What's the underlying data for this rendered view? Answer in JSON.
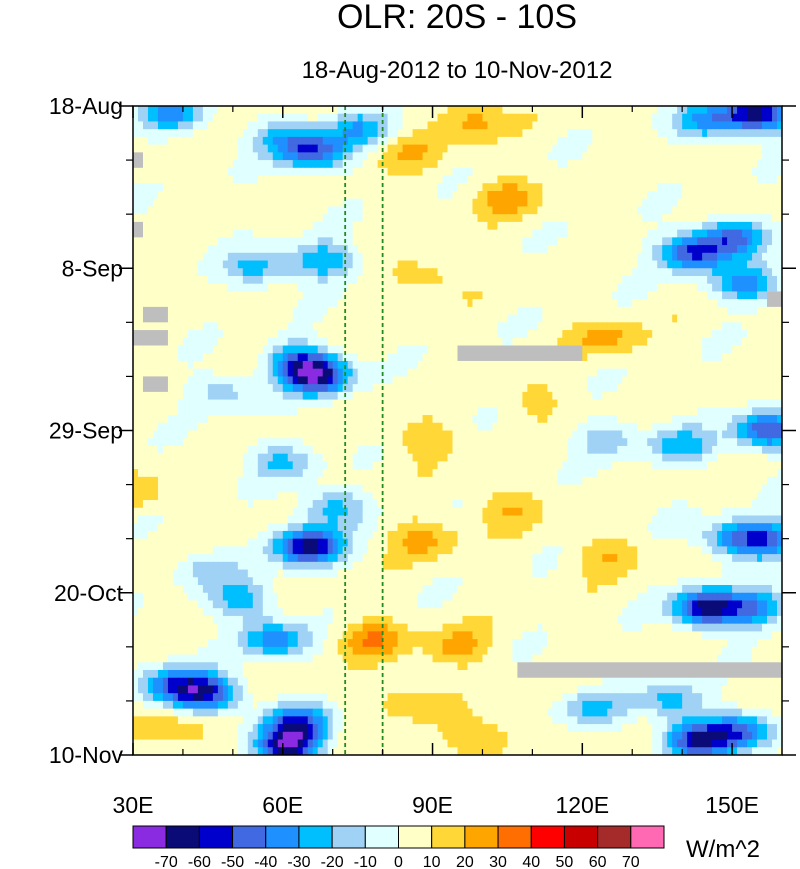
{
  "chart_data": {
    "type": "heatmap",
    "title": "OLR: 20S - 10S",
    "subtitle": "18-Aug-2012 to 10-Nov-2012",
    "xlabel": "",
    "ylabel": "",
    "xlim": [
      30,
      160
    ],
    "ylim_days": [
      0,
      84
    ],
    "x_ticks": [
      {
        "value": 30,
        "label": "30E"
      },
      {
        "value": 60,
        "label": "60E"
      },
      {
        "value": 90,
        "label": "90E"
      },
      {
        "value": 120,
        "label": "120E"
      },
      {
        "value": 150,
        "label": "150E"
      }
    ],
    "y_ticks": [
      {
        "day": 0,
        "label": "18-Aug"
      },
      {
        "day": 21,
        "label": "8-Sep"
      },
      {
        "day": 42,
        "label": "29-Sep"
      },
      {
        "day": 63,
        "label": "20-Oct"
      },
      {
        "day": 84,
        "label": "10-Nov"
      }
    ],
    "reference_lines_lon": [
      72.5,
      80
    ],
    "colorbar": {
      "units": "W/m^2",
      "levels": [
        -70,
        -60,
        -50,
        -40,
        -30,
        -20,
        -10,
        0,
        10,
        20,
        30,
        40,
        50,
        60,
        70
      ],
      "colors": [
        "#8a2be2",
        "#0b0b78",
        "#0000cd",
        "#4169e1",
        "#1e90ff",
        "#00bfff",
        "#a0d2f5",
        "#e0ffff",
        "#ffffc8",
        "#ffd737",
        "#ffa500",
        "#ff6e00",
        "#ff0000",
        "#c80000",
        "#a52a2a",
        "#ff69b4"
      ]
    },
    "anomalies": [
      {
        "lon": 38,
        "day": 1,
        "value": -35
      },
      {
        "lon": 60,
        "day": 4,
        "value": -25
      },
      {
        "lon": 66,
        "day": 6,
        "value": -50
      },
      {
        "lon": 75,
        "day": 3,
        "value": -30
      },
      {
        "lon": 68,
        "day": 20,
        "value": -35
      },
      {
        "lon": 55,
        "day": 21,
        "value": -30
      },
      {
        "lon": 67,
        "day": 35,
        "value": -65
      },
      {
        "lon": 63,
        "day": 33,
        "value": -40
      },
      {
        "lon": 48,
        "day": 37,
        "value": -20
      },
      {
        "lon": 60,
        "day": 46,
        "value": -25
      },
      {
        "lon": 70,
        "day": 52,
        "value": -30
      },
      {
        "lon": 65,
        "day": 57,
        "value": -70
      },
      {
        "lon": 45,
        "day": 60,
        "value": -20
      },
      {
        "lon": 52,
        "day": 64,
        "value": -30
      },
      {
        "lon": 58,
        "day": 69,
        "value": -40
      },
      {
        "lon": 38,
        "day": 75,
        "value": -45
      },
      {
        "lon": 45,
        "day": 76,
        "value": -55
      },
      {
        "lon": 63,
        "day": 80,
        "value": -50
      },
      {
        "lon": 61,
        "day": 83,
        "value": -65
      },
      {
        "lon": 155,
        "day": 1,
        "value": -70
      },
      {
        "lon": 145,
        "day": 2,
        "value": -35
      },
      {
        "lon": 142,
        "day": 19,
        "value": -55
      },
      {
        "lon": 150,
        "day": 17,
        "value": -45
      },
      {
        "lon": 153,
        "day": 23,
        "value": -40
      },
      {
        "lon": 157,
        "day": 42,
        "value": -55
      },
      {
        "lon": 140,
        "day": 44,
        "value": -30
      },
      {
        "lon": 125,
        "day": 43,
        "value": -20
      },
      {
        "lon": 150,
        "day": 56,
        "value": -35
      },
      {
        "lon": 157,
        "day": 56,
        "value": -45
      },
      {
        "lon": 145,
        "day": 65,
        "value": -70
      },
      {
        "lon": 155,
        "day": 65,
        "value": -40
      },
      {
        "lon": 138,
        "day": 77,
        "value": -30
      },
      {
        "lon": 122,
        "day": 78,
        "value": -25
      },
      {
        "lon": 143,
        "day": 82,
        "value": -60
      },
      {
        "lon": 152,
        "day": 81,
        "value": -45
      },
      {
        "lon": 85,
        "day": 6,
        "value": 15
      },
      {
        "lon": 98,
        "day": 2,
        "value": 20
      },
      {
        "lon": 105,
        "day": 12,
        "value": 20
      },
      {
        "lon": 88,
        "day": 22,
        "value": 15
      },
      {
        "lon": 125,
        "day": 30,
        "value": 20
      },
      {
        "lon": 88,
        "day": 43,
        "value": 15
      },
      {
        "lon": 105,
        "day": 52,
        "value": 15
      },
      {
        "lon": 88,
        "day": 56,
        "value": 20
      },
      {
        "lon": 30,
        "day": 50,
        "value": 15
      },
      {
        "lon": 125,
        "day": 58,
        "value": 15
      },
      {
        "lon": 78,
        "day": 69,
        "value": 25
      },
      {
        "lon": 95,
        "day": 70,
        "value": 20
      },
      {
        "lon": 85,
        "day": 77,
        "value": 15
      },
      {
        "lon": 100,
        "day": 82,
        "value": 20
      },
      {
        "lon": 40,
        "day": 81,
        "value": 15
      },
      {
        "lon": 110,
        "day": 38,
        "value": 10
      }
    ],
    "missing_data": [
      {
        "lon0": 30,
        "lon1": 32,
        "day0": 6,
        "day1": 8
      },
      {
        "lon0": 30,
        "lon1": 32,
        "day0": 15,
        "day1": 17
      },
      {
        "lon0": 32,
        "lon1": 37,
        "day0": 26,
        "day1": 28
      },
      {
        "lon0": 30,
        "lon1": 37,
        "day0": 29,
        "day1": 31
      },
      {
        "lon0": 32,
        "lon1": 37,
        "day0": 35,
        "day1": 37
      },
      {
        "lon0": 95,
        "lon1": 120,
        "day0": 31,
        "day1": 33
      },
      {
        "lon0": 157,
        "lon1": 160,
        "day0": 24,
        "day1": 26
      },
      {
        "lon0": 107,
        "lon1": 160,
        "day0": 72,
        "day1": 74
      }
    ]
  }
}
